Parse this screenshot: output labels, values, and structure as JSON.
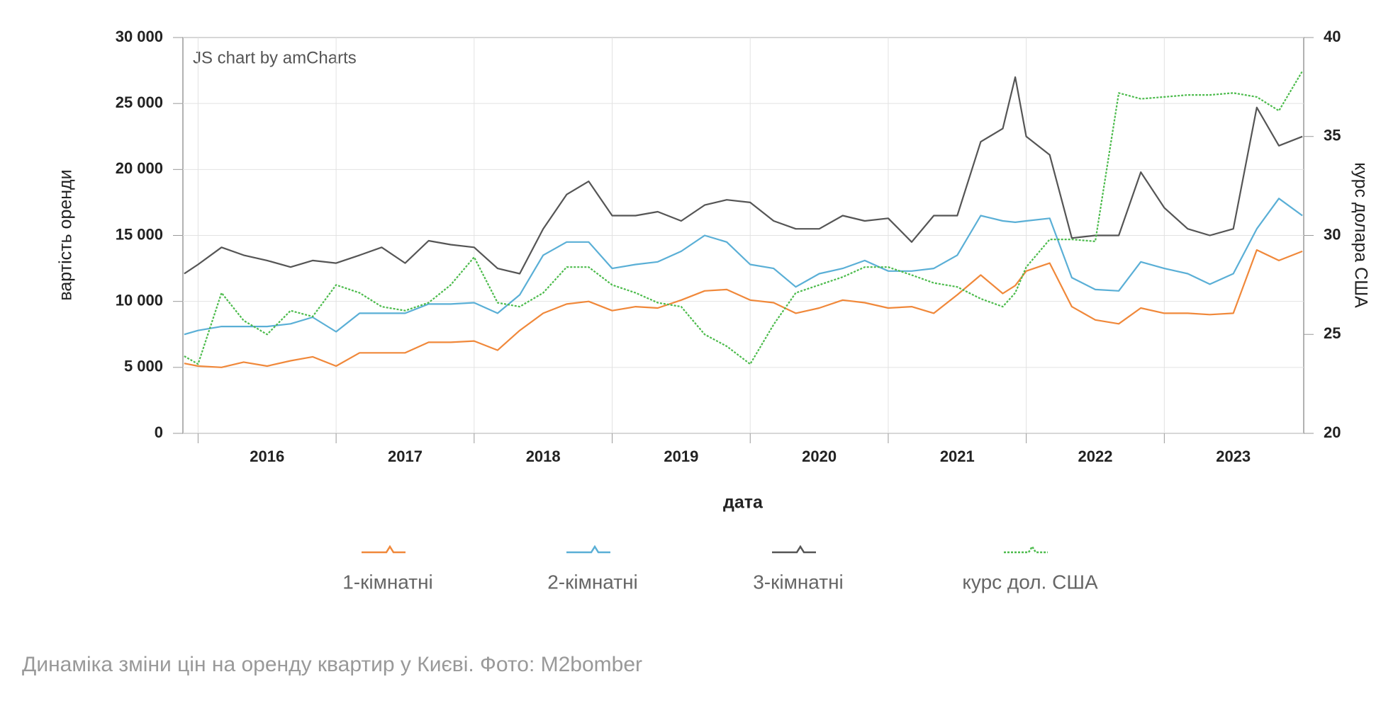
{
  "chart_data": {
    "type": "line",
    "credit": "JS chart by amCharts",
    "xlabel": "дата",
    "ylabel": "вартість оренди",
    "y2label": "курс долара США",
    "caption": "Динаміка зміни цін на оренду квартир у Києві. Фото: M2bomber",
    "x": [
      2015.9,
      2016,
      2016.17,
      2016.33,
      2016.5,
      2016.67,
      2016.83,
      2017,
      2017.17,
      2017.33,
      2017.5,
      2017.67,
      2017.83,
      2018,
      2018.17,
      2018.33,
      2018.5,
      2018.67,
      2018.83,
      2019,
      2019.17,
      2019.33,
      2019.5,
      2019.67,
      2019.83,
      2020,
      2020.17,
      2020.33,
      2020.5,
      2020.67,
      2020.83,
      2021,
      2021.17,
      2021.33,
      2021.5,
      2021.67,
      2021.83,
      2021.92,
      2022,
      2022.17,
      2022.33,
      2022.5,
      2022.67,
      2022.83,
      2023,
      2023.17,
      2023.33,
      2023.5,
      2023.67,
      2023.83,
      2024
    ],
    "series": [
      {
        "name": "1-кімнатні",
        "color": "#f0883a",
        "values": [
          5300,
          5100,
          5000,
          5400,
          5100,
          5500,
          5800,
          5100,
          6100,
          6100,
          6100,
          6900,
          6900,
          7000,
          6300,
          7800,
          9100,
          9800,
          10000,
          9300,
          9600,
          9500,
          10100,
          10800,
          10900,
          10100,
          9900,
          9100,
          9500,
          10100,
          9900,
          9500,
          9600,
          9100,
          10500,
          12000,
          10600,
          11200,
          12300,
          12900,
          9600,
          8600,
          8300,
          9500,
          9100,
          9100,
          9000,
          9100,
          13900,
          13100,
          13800
        ]
      },
      {
        "name": "2-кімнатні",
        "color": "#5aafd6",
        "values": [
          7500,
          7800,
          8100,
          8100,
          8100,
          8300,
          8800,
          7700,
          9100,
          9100,
          9100,
          9800,
          9800,
          9900,
          9100,
          10500,
          13500,
          14500,
          14500,
          12500,
          12800,
          13000,
          13800,
          15000,
          14500,
          12800,
          12500,
          11100,
          12100,
          12500,
          13100,
          12300,
          12300,
          12500,
          13500,
          16500,
          16100,
          16000,
          16100,
          16300,
          11800,
          10900,
          10800,
          13000,
          12500,
          12100,
          11300,
          12100,
          15500,
          17800,
          16500
        ]
      },
      {
        "name": "3-кімнатні",
        "color": "#555555",
        "values": [
          12100,
          12800,
          14100,
          13500,
          13100,
          12600,
          13100,
          12900,
          13500,
          14100,
          12900,
          14600,
          14300,
          14100,
          12500,
          12100,
          15500,
          18100,
          19100,
          16500,
          16500,
          16800,
          16100,
          17300,
          17700,
          17500,
          16100,
          15500,
          15500,
          16500,
          16100,
          16300,
          14500,
          16500,
          16500,
          22100,
          23100,
          27000,
          22500,
          21100,
          14800,
          15000,
          15000,
          19800,
          17100,
          15500,
          15000,
          15500,
          24700,
          21800,
          22500
        ]
      },
      {
        "name": "курс дол. США",
        "color": "#4cbb4c",
        "axis": "y2",
        "dashed": true,
        "values": [
          23.9,
          23.5,
          27.1,
          25.7,
          25.0,
          26.2,
          25.9,
          27.5,
          27.1,
          26.4,
          26.2,
          26.6,
          27.5,
          28.9,
          26.6,
          26.4,
          27.1,
          28.4,
          28.4,
          27.5,
          27.1,
          26.6,
          26.4,
          25.0,
          24.4,
          23.5,
          25.5,
          27.1,
          27.5,
          27.9,
          28.4,
          28.4,
          28.0,
          27.6,
          27.4,
          26.8,
          26.4,
          27.1,
          28.4,
          29.8,
          29.8,
          29.7,
          37.2,
          36.9,
          37.0,
          37.1,
          37.1,
          37.2,
          37.0,
          36.3,
          38.3
        ]
      }
    ],
    "xlim": [
      2015.89,
      2024.01
    ],
    "xticks": [
      2016,
      2017,
      2018,
      2019,
      2020,
      2021,
      2022,
      2023
    ],
    "ylim": [
      0,
      30000
    ],
    "yticks": [
      {
        "value": 0,
        "label": "0"
      },
      {
        "value": 5000,
        "label": "5 000"
      },
      {
        "value": 10000,
        "label": "10 000"
      },
      {
        "value": 15000,
        "label": "15 000"
      },
      {
        "value": 20000,
        "label": "20 000"
      },
      {
        "value": 25000,
        "label": "25 000"
      },
      {
        "value": 30000,
        "label": "30 000"
      }
    ],
    "y2lim": [
      20,
      40
    ],
    "y2ticks": [
      20,
      25,
      30,
      35,
      40
    ],
    "grid": true
  }
}
